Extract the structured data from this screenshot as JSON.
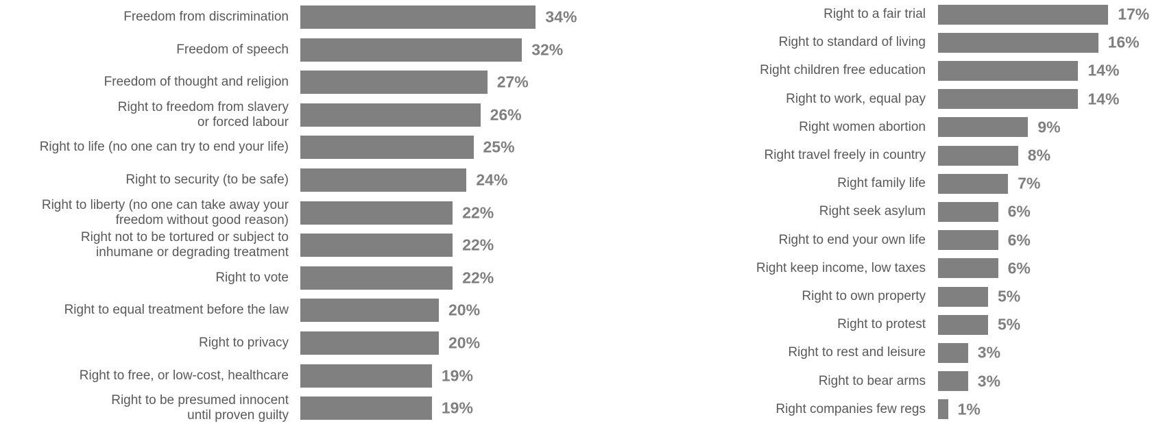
{
  "chart_data": [
    {
      "type": "bar",
      "orientation": "horizontal",
      "color": "#808080",
      "categories": [
        "Freedom from discrimination",
        "Freedom of speech",
        "Freedom of thought and religion",
        "Right to freedom from slavery\nor forced labour",
        "Right to life (no one can try to end your life)",
        "Right to security (to be safe)",
        "Right to liberty (no one can take away your\nfreedom without good reason)",
        "Right not to be tortured or subject to\ninhumane or degrading treatment",
        "Right to vote",
        "Right to equal treatment before the law",
        "Right to privacy",
        "Right to free, or low-cost, healthcare",
        "Right to be presumed innocent\nuntil proven guilty"
      ],
      "values": [
        34,
        32,
        27,
        26,
        25,
        24,
        22,
        22,
        22,
        20,
        20,
        19,
        19
      ],
      "value_labels": [
        "34%",
        "32%",
        "27%",
        "26%",
        "25%",
        "24%",
        "22%",
        "22%",
        "22%",
        "20%",
        "20%",
        "19%",
        "19%"
      ]
    },
    {
      "type": "bar",
      "orientation": "horizontal",
      "color": "#808080",
      "categories": [
        "Right to a fair trial",
        "Right to standard of living",
        "Right children free education",
        "Right to work, equal pay",
        "Right women abortion",
        "Right travel freely in country",
        "Right family life",
        "Right seek asylum",
        "Right to end your own life",
        "Right keep income, low taxes",
        "Right to own property",
        "Right to protest",
        "Right to rest and leisure",
        "Right to bear arms",
        "Right companies few regs"
      ],
      "values": [
        17,
        16,
        14,
        14,
        9,
        8,
        7,
        6,
        6,
        6,
        5,
        5,
        3,
        3,
        1
      ],
      "value_labels": [
        "17%",
        "16%",
        "14%",
        "14%",
        "9%",
        "8%",
        "7%",
        "6%",
        "6%",
        "6%",
        "5%",
        "5%",
        "3%",
        "3%",
        "1%"
      ]
    }
  ]
}
